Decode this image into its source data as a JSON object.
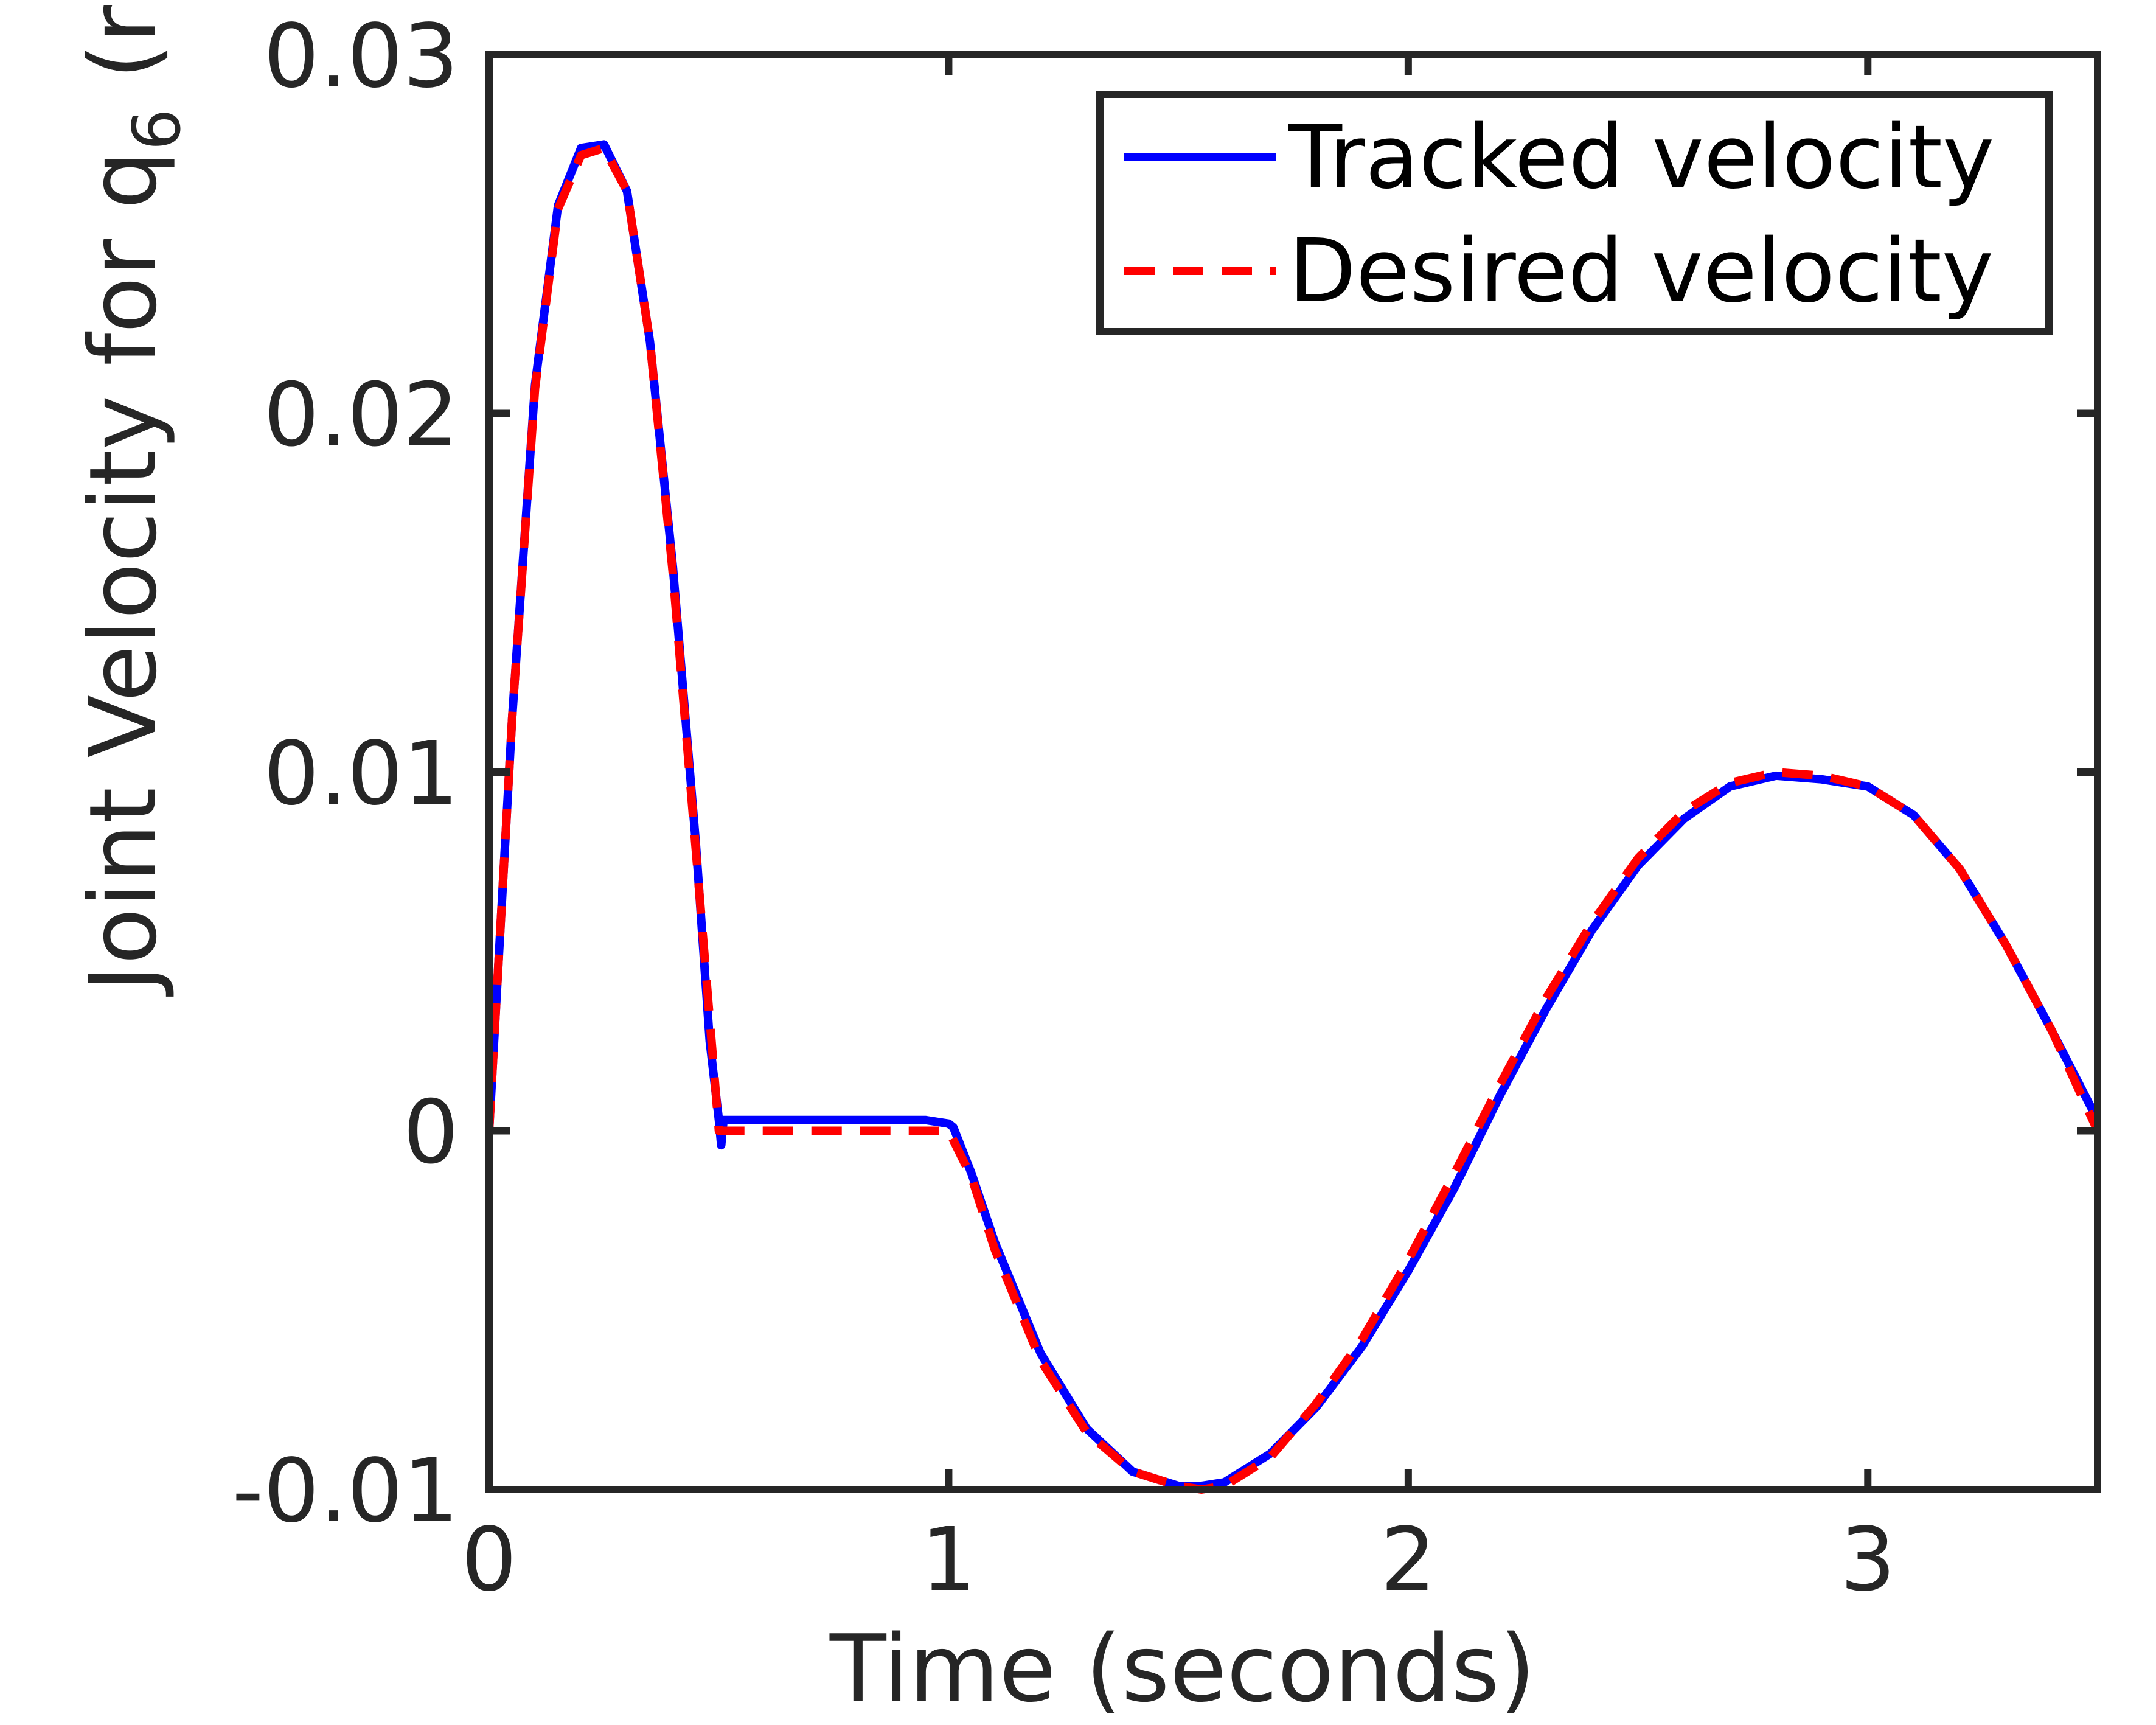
{
  "chart_data": {
    "type": "line",
    "title": "",
    "xlabel": "Time (seconds)",
    "ylabel": {
      "prefix": "Joint Velocity for q",
      "subscript": "6",
      "suffix": " (rad/sec)"
    },
    "xlim": [
      0,
      3.5
    ],
    "ylim": [
      -0.01,
      0.03
    ],
    "xticks": [
      0,
      1,
      2,
      3
    ],
    "xtick_labels": [
      "0",
      "1",
      "2",
      "3"
    ],
    "yticks": [
      -0.01,
      0,
      0.01,
      0.02,
      0.03
    ],
    "ytick_labels": [
      "-0.01",
      "0",
      "0.01",
      "0.02",
      "0.03"
    ],
    "grid": false,
    "legend_position": "top-right",
    "series": [
      {
        "name": "Tracked velocity",
        "color": "#0000ff",
        "style": "solid",
        "x": [
          0,
          0.05,
          0.1,
          0.15,
          0.2,
          0.25,
          0.3,
          0.35,
          0.4,
          0.45,
          0.48,
          0.5,
          0.505,
          0.51,
          0.52,
          0.7,
          0.95,
          1.0,
          1.01,
          1.05,
          1.1,
          1.2,
          1.3,
          1.4,
          1.5,
          1.55,
          1.6,
          1.7,
          1.8,
          1.9,
          2.0,
          2.1,
          2.2,
          2.3,
          2.4,
          2.5,
          2.6,
          2.7,
          2.8,
          2.9,
          3.0,
          3.1,
          3.2,
          3.3,
          3.4,
          3.5
        ],
        "y": [
          0.0,
          0.0115,
          0.0208,
          0.0258,
          0.0274,
          0.0275,
          0.0262,
          0.022,
          0.0157,
          0.008,
          0.0025,
          0.0003,
          -0.0004,
          0.0003,
          0.0003,
          0.0003,
          0.0003,
          0.0002,
          0.0001,
          -0.0012,
          -0.0031,
          -0.0062,
          -0.0083,
          -0.0095,
          -0.0099,
          -0.0099,
          -0.0098,
          -0.009,
          -0.0077,
          -0.006,
          -0.0039,
          -0.0016,
          0.001,
          0.0034,
          0.0056,
          0.0074,
          0.0087,
          0.0096,
          0.0099,
          0.0098,
          0.0096,
          0.0088,
          0.0073,
          0.0052,
          0.0028,
          0.0003
        ]
      },
      {
        "name": "Desired velocity",
        "color": "#ff0000",
        "style": "dashed",
        "x": [
          0,
          0.05,
          0.1,
          0.15,
          0.2,
          0.25,
          0.3,
          0.35,
          0.4,
          0.45,
          0.5,
          0.7,
          0.9,
          1.0,
          1.05,
          1.1,
          1.2,
          1.3,
          1.4,
          1.5,
          1.55,
          1.6,
          1.7,
          1.8,
          1.9,
          2.0,
          2.1,
          2.2,
          2.3,
          2.4,
          2.5,
          2.6,
          2.7,
          2.8,
          2.9,
          3.0,
          3.1,
          3.2,
          3.3,
          3.4,
          3.5
        ],
        "y": [
          0.0,
          0.0115,
          0.0207,
          0.0257,
          0.0272,
          0.0274,
          0.0262,
          0.022,
          0.0155,
          0.0078,
          0.0,
          0.0,
          0.0,
          0.0,
          -0.0013,
          -0.0033,
          -0.0064,
          -0.0084,
          -0.0095,
          -0.0099,
          -0.01,
          -0.0099,
          -0.0091,
          -0.0076,
          -0.0058,
          -0.0036,
          -0.0012,
          0.0013,
          0.0037,
          0.0058,
          0.0076,
          0.0089,
          0.0097,
          0.01,
          0.0099,
          0.0096,
          0.0088,
          0.0073,
          0.0052,
          0.0028,
          0.0
        ]
      }
    ]
  }
}
